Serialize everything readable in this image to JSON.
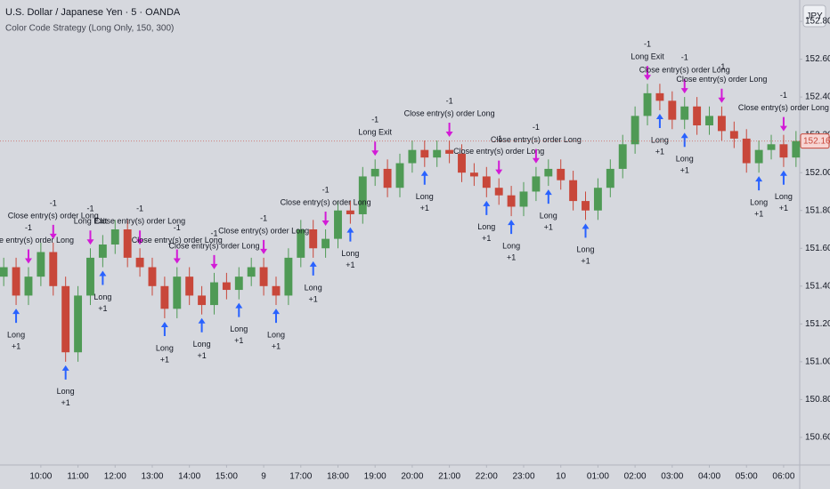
{
  "header": {
    "symbol": "U.S. Dollar / Japanese Yen · 5 · OANDA",
    "indicator": "Color Code Strategy (Long Only, 150, 300)",
    "currency_button": "JPY"
  },
  "chart_data": {
    "type": "candlestick",
    "up_color": "#4f9a55",
    "down_color": "#c8473a",
    "entry_color": "#2962ff",
    "exit_color": "#d21bd6",
    "grid": false,
    "open": [
      151.45,
      151.5,
      151.35,
      151.45,
      151.58,
      151.4,
      151.05,
      151.35,
      151.55,
      151.62,
      151.7,
      151.55,
      151.5,
      151.4,
      151.28,
      151.45,
      151.35,
      151.3,
      151.42,
      151.38,
      151.45,
      151.5,
      151.4,
      151.35,
      151.55,
      151.7,
      151.6,
      151.65,
      151.8,
      151.78,
      151.98,
      152.02,
      151.92,
      152.05,
      152.12,
      152.08,
      152.12,
      152.1,
      152.0,
      151.98,
      151.92,
      151.88,
      151.82,
      151.9,
      151.98,
      152.02,
      151.96,
      151.85,
      151.8,
      151.92,
      152.02,
      152.15,
      152.3,
      152.42,
      152.38,
      152.28,
      152.35,
      152.25,
      152.3,
      152.22,
      152.18,
      152.05,
      152.12,
      152.15,
      152.08
    ],
    "high": [
      151.55,
      151.55,
      151.5,
      151.63,
      151.63,
      151.45,
      151.4,
      151.6,
      151.67,
      151.75,
      151.75,
      151.6,
      151.55,
      151.45,
      151.5,
      151.5,
      151.4,
      151.47,
      151.47,
      151.5,
      151.55,
      151.55,
      151.45,
      151.6,
      151.75,
      151.75,
      151.7,
      151.85,
      151.85,
      152.03,
      152.07,
      152.07,
      152.1,
      152.17,
      152.17,
      152.17,
      152.17,
      152.15,
      152.05,
      152.03,
      151.97,
      151.93,
      151.95,
      152.03,
      152.07,
      152.07,
      152.01,
      151.9,
      151.97,
      152.07,
      152.2,
      152.35,
      152.47,
      152.47,
      152.43,
      152.4,
      152.4,
      152.35,
      152.35,
      152.27,
      152.23,
      152.17,
      152.2,
      152.2,
      152.22
    ],
    "low": [
      151.4,
      151.3,
      151.3,
      151.4,
      151.35,
      151.0,
      151.0,
      151.3,
      151.5,
      151.57,
      151.5,
      151.45,
      151.35,
      151.23,
      151.23,
      151.3,
      151.25,
      151.25,
      151.33,
      151.33,
      151.4,
      151.35,
      151.3,
      151.3,
      151.5,
      151.55,
      151.55,
      151.6,
      151.73,
      151.73,
      151.93,
      151.87,
      151.87,
      152.0,
      152.03,
      152.03,
      152.05,
      151.95,
      151.93,
      151.87,
      151.83,
      151.77,
      151.77,
      151.85,
      151.93,
      151.91,
      151.8,
      151.75,
      151.75,
      151.87,
      151.97,
      152.1,
      152.25,
      152.33,
      152.23,
      152.23,
      152.2,
      152.2,
      152.17,
      152.13,
      152.0,
      152.0,
      152.07,
      152.03,
      152.03
    ],
    "close": [
      151.5,
      151.35,
      151.45,
      151.58,
      151.4,
      151.05,
      151.35,
      151.55,
      151.62,
      151.7,
      151.55,
      151.5,
      151.4,
      151.28,
      151.45,
      151.35,
      151.3,
      151.42,
      151.38,
      151.45,
      151.5,
      151.4,
      151.35,
      151.55,
      151.7,
      151.6,
      151.65,
      151.8,
      151.78,
      151.98,
      152.02,
      151.92,
      152.05,
      152.12,
      152.08,
      152.12,
      152.1,
      152.0,
      151.98,
      151.92,
      151.88,
      151.82,
      151.9,
      151.98,
      152.02,
      151.96,
      151.85,
      151.8,
      151.92,
      152.02,
      152.15,
      152.3,
      152.42,
      152.38,
      152.28,
      152.35,
      152.25,
      152.3,
      152.22,
      152.18,
      152.05,
      152.12,
      152.15,
      152.08,
      152.167
    ],
    "xlim": [
      -0.3,
      64.3
    ],
    "xticks": [
      {
        "value": 3,
        "label": "10:00"
      },
      {
        "value": 6,
        "label": "11:00"
      },
      {
        "value": 9,
        "label": "12:00"
      },
      {
        "value": 12,
        "label": "13:00"
      },
      {
        "value": 15,
        "label": "14:00"
      },
      {
        "value": 18,
        "label": "15:00"
      },
      {
        "value": 21,
        "label": "9"
      },
      {
        "value": 24,
        "label": "17:00"
      },
      {
        "value": 27,
        "label": "18:00"
      },
      {
        "value": 30,
        "label": "19:00"
      },
      {
        "value": 33,
        "label": "20:00"
      },
      {
        "value": 36,
        "label": "21:00"
      },
      {
        "value": 39,
        "label": "22:00"
      },
      {
        "value": 42,
        "label": "23:00"
      },
      {
        "value": 45,
        "label": "10"
      },
      {
        "value": 48,
        "label": "01:00"
      },
      {
        "value": 51,
        "label": "02:00"
      },
      {
        "value": 54,
        "label": "03:00"
      },
      {
        "value": 57,
        "label": "04:00"
      },
      {
        "value": 60,
        "label": "05:00"
      },
      {
        "value": 63,
        "label": "06:00"
      }
    ],
    "ylim": [
      150.454,
      152.913
    ],
    "yticks": [
      {
        "value": 150.6,
        "label": "150.600"
      },
      {
        "value": 150.8,
        "label": "150.800"
      },
      {
        "value": 151.0,
        "label": "151.000"
      },
      {
        "value": 151.2,
        "label": "151.200"
      },
      {
        "value": 151.4,
        "label": "151.400"
      },
      {
        "value": 151.6,
        "label": "151.600"
      },
      {
        "value": 151.8,
        "label": "151.800"
      },
      {
        "value": 152.0,
        "label": "152.000"
      },
      {
        "value": 152.2,
        "label": "152.200"
      },
      {
        "value": 152.4,
        "label": "152.400"
      },
      {
        "value": 152.6,
        "label": "152.600"
      },
      {
        "value": 152.8,
        "label": "152.800"
      }
    ],
    "signals": [
      {
        "candle": 1,
        "side": "entry",
        "label": "Long",
        "qty": "+1"
      },
      {
        "candle": 2,
        "side": "exit",
        "label": "Close entry(s) order Long",
        "qty": "-1"
      },
      {
        "candle": 4,
        "side": "exit",
        "label": "Close entry(s) order Long",
        "qty": "-1"
      },
      {
        "candle": 5,
        "side": "entry",
        "label": "Long",
        "qty": "+1"
      },
      {
        "candle": 7,
        "side": "exit",
        "label": "Long Exit",
        "qty": "-1"
      },
      {
        "candle": 8,
        "side": "entry",
        "label": "Long",
        "qty": "+1"
      },
      {
        "candle": 11,
        "side": "exit",
        "label": "Close entry(s) order Long",
        "qty": "-1"
      },
      {
        "candle": 13,
        "side": "entry",
        "label": "Long",
        "qty": "+1"
      },
      {
        "candle": 14,
        "side": "exit",
        "label": "Close entry(s) order Long",
        "qty": "-1"
      },
      {
        "candle": 16,
        "side": "entry",
        "label": "Long",
        "qty": "+1"
      },
      {
        "candle": 17,
        "side": "exit",
        "label": "Close entry(s) order Long",
        "qty": "-1"
      },
      {
        "candle": 19,
        "side": "entry",
        "label": "Long",
        "qty": "+1"
      },
      {
        "candle": 21,
        "side": "exit",
        "label": "Close entry(s) order Long",
        "qty": "-1"
      },
      {
        "candle": 22,
        "side": "entry",
        "label": "Long",
        "qty": "+1"
      },
      {
        "candle": 25,
        "side": "entry",
        "label": "Long",
        "qty": "+1"
      },
      {
        "candle": 26,
        "side": "exit",
        "label": "Close entry(s) order Long",
        "qty": "-1"
      },
      {
        "candle": 28,
        "side": "entry",
        "label": "Long",
        "qty": "+1"
      },
      {
        "candle": 30,
        "side": "exit",
        "label": "Long Exit",
        "qty": "-1"
      },
      {
        "candle": 34,
        "side": "entry",
        "label": "Long",
        "qty": "+1"
      },
      {
        "candle": 36,
        "side": "exit",
        "label": "Close entry(s) order Long",
        "qty": "-1"
      },
      {
        "candle": 39,
        "side": "entry",
        "label": "Long",
        "qty": "+1"
      },
      {
        "candle": 40,
        "side": "exit",
        "label": "Close entry(s) order Long",
        "qty": "-1"
      },
      {
        "candle": 41,
        "side": "entry",
        "label": "Long",
        "qty": "+1"
      },
      {
        "candle": 43,
        "side": "exit",
        "label": "Close entry(s) order Long",
        "qty": "-1"
      },
      {
        "candle": 44,
        "side": "entry",
        "label": "Long",
        "qty": "+1"
      },
      {
        "candle": 47,
        "side": "entry",
        "label": "Long",
        "qty": "+1"
      },
      {
        "candle": 52,
        "side": "exit",
        "label": "Long Exit",
        "qty": "-1"
      },
      {
        "candle": 53,
        "side": "entry",
        "label": "Long",
        "qty": "+1"
      },
      {
        "candle": 55,
        "side": "exit",
        "label": "Close entry(s) order Long",
        "qty": "-1"
      },
      {
        "candle": 55,
        "side": "entry",
        "label": "Long",
        "qty": "+1"
      },
      {
        "candle": 58,
        "side": "exit",
        "label": "Close entry(s) order Long",
        "qty": "-1"
      },
      {
        "candle": 61,
        "side": "entry",
        "label": "Long",
        "qty": "+1"
      },
      {
        "candle": 63,
        "side": "exit",
        "label": "Close entry(s) order Long",
        "qty": "-1"
      },
      {
        "candle": 63,
        "side": "entry",
        "label": "Long",
        "qty": "+1"
      }
    ]
  }
}
